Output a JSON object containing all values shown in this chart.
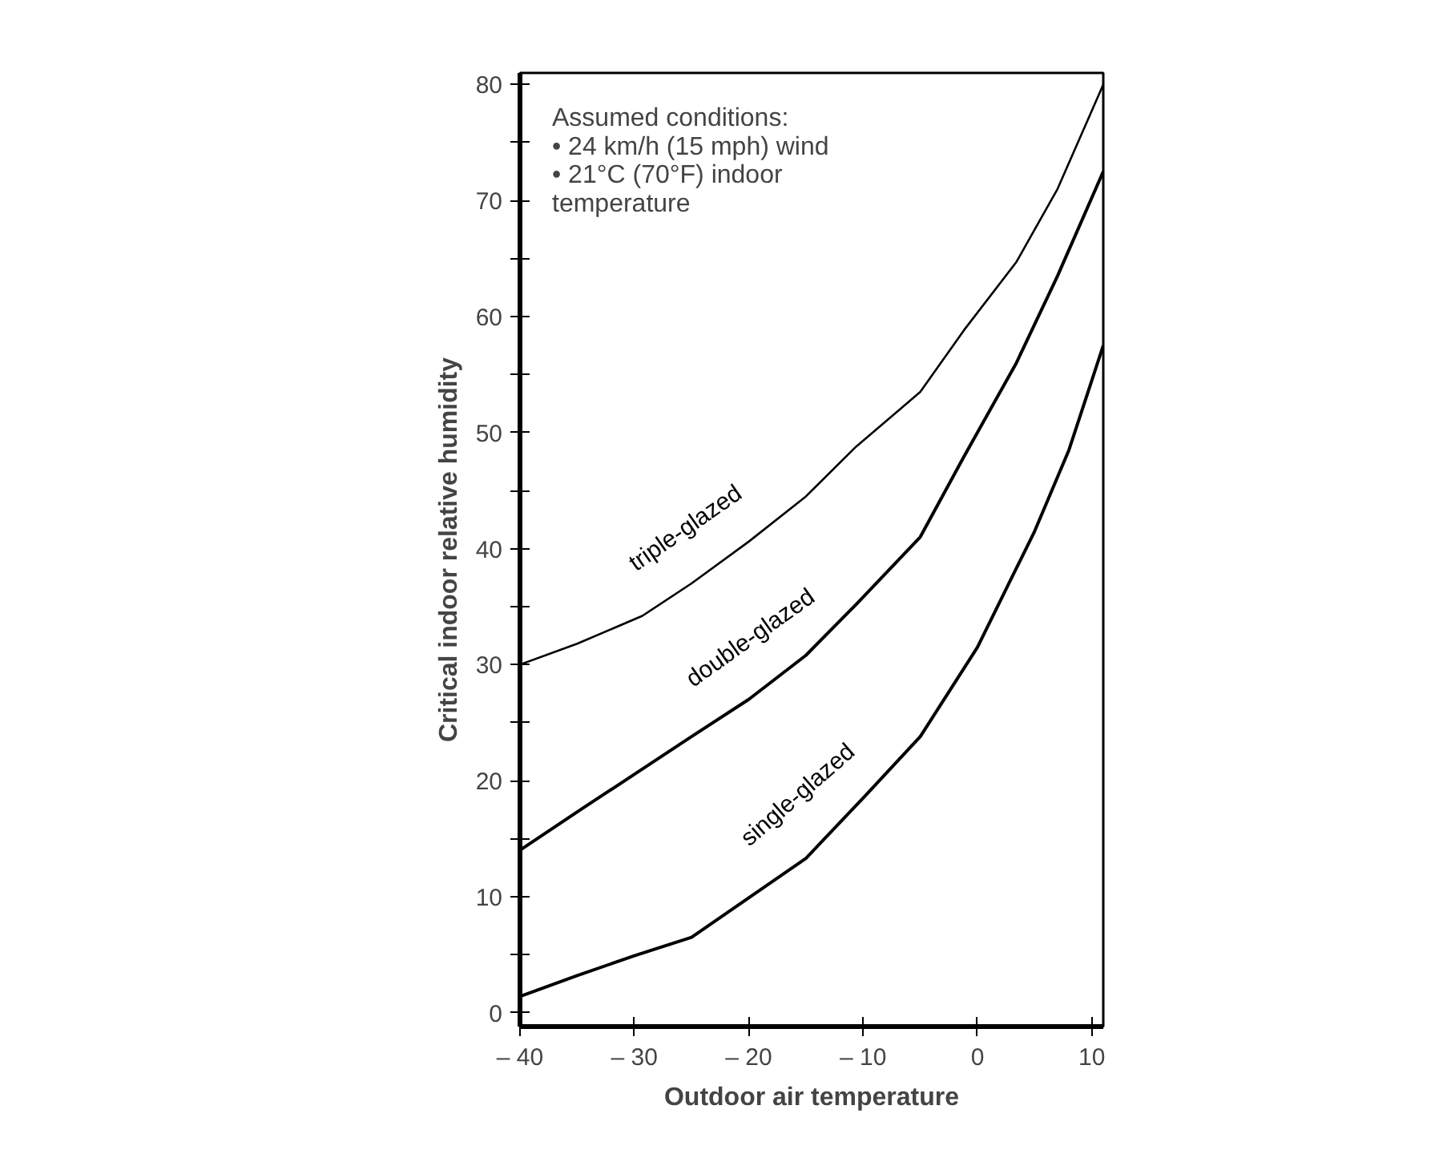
{
  "chart_data": {
    "type": "line",
    "xlabel": "Outdoor air temperature",
    "ylabel": "Critical indoor relative humidity",
    "annotations": [
      "Assumed conditions:\n• 24 km/h (15 mph) wind\n• 21°C (70°F) indoor\n   temperature"
    ],
    "xlim": [
      -40,
      11
    ],
    "ylim": [
      -1.2,
      81
    ],
    "xticks": [
      {
        "value": -40,
        "label": "– 40"
      },
      {
        "value": -30,
        "label": "– 30"
      },
      {
        "value": -20,
        "label": "– 20"
      },
      {
        "value": -10,
        "label": "– 10"
      },
      0,
      10
    ],
    "yticks": [
      0,
      {
        "value": 5,
        "label": null
      },
      10,
      {
        "value": 15,
        "label": null
      },
      20,
      {
        "value": 25,
        "label": null
      },
      30,
      {
        "value": 35,
        "label": null
      },
      40,
      {
        "value": 45,
        "label": null
      },
      50,
      {
        "value": 55,
        "label": null
      },
      60,
      {
        "value": 65,
        "label": null
      },
      70,
      {
        "value": 75,
        "label": null
      },
      80
    ],
    "grid": false,
    "legend": false,
    "marker": "none",
    "line_style": "solid",
    "series": [
      {
        "name": "triple-glazed",
        "color": "#000000",
        "x": [
          -40,
          -35,
          -29.3,
          -25,
          -20,
          -15,
          -10.6,
          -5,
          -1.2,
          3.4,
          7,
          11
        ],
        "values": [
          30,
          31.8,
          34.2,
          37,
          40.6,
          44.5,
          48.8,
          53.5,
          58.8,
          64.7,
          71,
          80
        ]
      },
      {
        "name": "double-glazed",
        "color": "#000000",
        "x": [
          -40,
          -35,
          -29.3,
          -25,
          -20,
          -15,
          -10.6,
          -5,
          -1.2,
          3.4,
          7,
          11
        ],
        "values": [
          14,
          17.3,
          21,
          23.8,
          27,
          30.8,
          35.2,
          41,
          47.9,
          56,
          63.5,
          72.5
        ]
      },
      {
        "name": "single-glazed",
        "color": "#000000",
        "x": [
          -40,
          -35,
          -30,
          -25,
          -20,
          -15,
          -10,
          -5,
          0,
          5,
          8,
          11
        ],
        "values": [
          1.4,
          3.2,
          4.9,
          6.5,
          9.9,
          13.3,
          18.5,
          23.8,
          31.5,
          41.5,
          48.5,
          57.5
        ]
      }
    ]
  }
}
